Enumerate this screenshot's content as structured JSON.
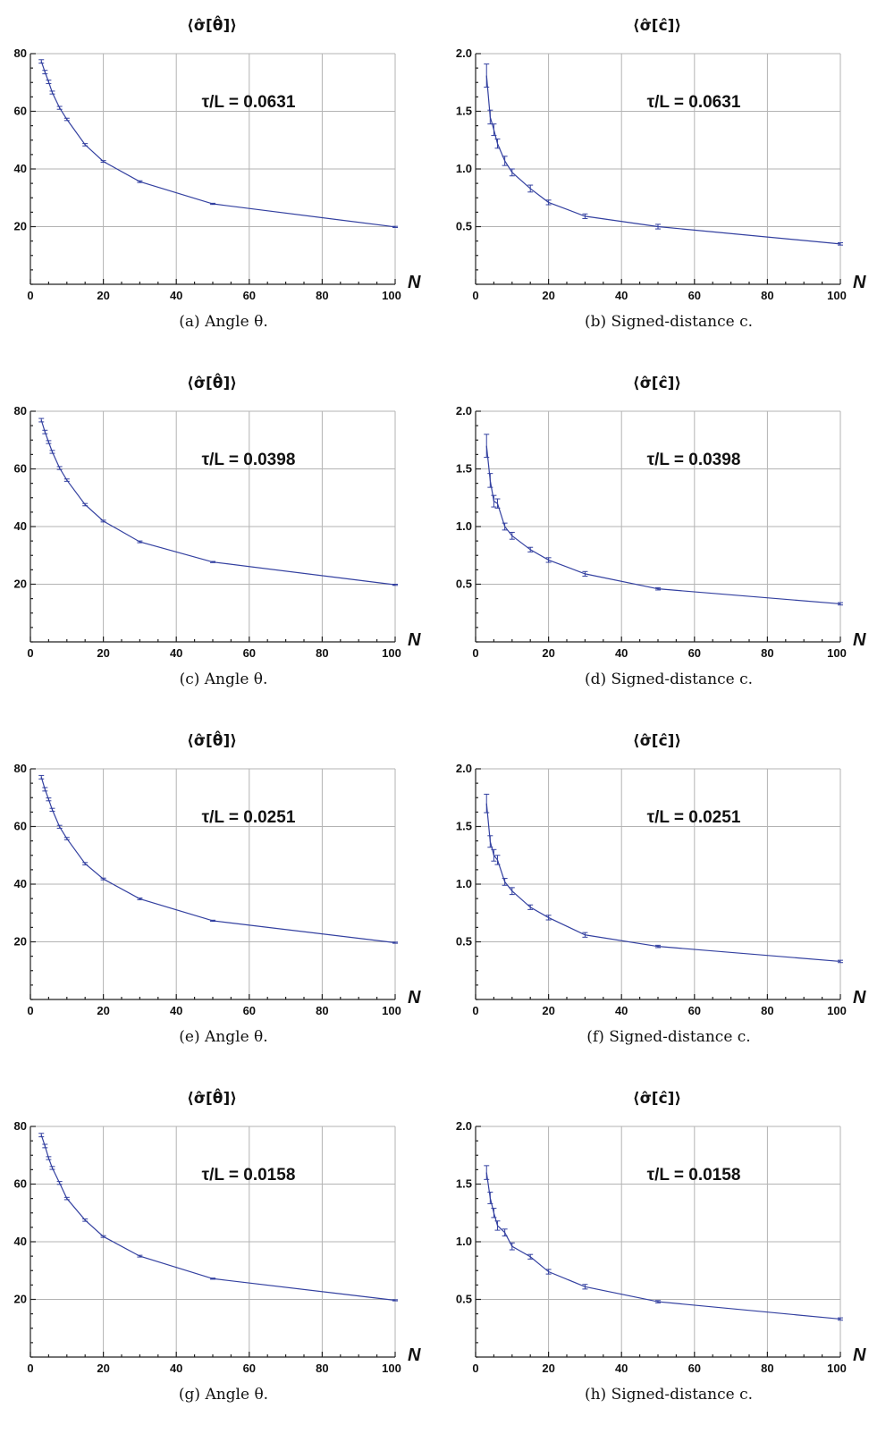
{
  "chart_data": [
    {
      "type": "line",
      "title": "⟨σ̂[θ̂]⟩",
      "annotation": "τ/L = 0.0631",
      "caption": "(a)  Angle θ.",
      "xlabel": "N",
      "xlim": [
        0,
        100
      ],
      "xticks": [
        0,
        20,
        40,
        60,
        80,
        100
      ],
      "ylim": [
        0,
        80
      ],
      "yticks": [
        20,
        40,
        60,
        80
      ],
      "x": [
        3,
        4,
        5,
        6,
        8,
        10,
        15,
        20,
        30,
        50,
        100
      ],
      "values": [
        77.3,
        73.6,
        70.2,
        66.5,
        61.2,
        57.2,
        48.4,
        42.6,
        35.6,
        27.9,
        19.9
      ],
      "errors": [
        0.6,
        0.6,
        0.6,
        0.5,
        0.5,
        0.4,
        0.4,
        0.3,
        0.3,
        0.2,
        0.2
      ],
      "color": "#3340a0"
    },
    {
      "type": "line",
      "title": "⟨σ̂[ĉ]⟩",
      "annotation": "τ/L = 0.0631",
      "caption": "(b) Signed-distance c.",
      "xlabel": "N",
      "xlim": [
        0,
        100
      ],
      "xticks": [
        0,
        20,
        40,
        60,
        80,
        100
      ],
      "ylim": [
        0,
        2
      ],
      "yticks": [
        0.5,
        1.0,
        1.5,
        2.0
      ],
      "x": [
        3,
        4,
        5,
        6,
        8,
        10,
        15,
        20,
        30,
        50,
        100
      ],
      "values": [
        1.81,
        1.45,
        1.34,
        1.22,
        1.07,
        0.97,
        0.83,
        0.71,
        0.59,
        0.5,
        0.35
      ],
      "errors": [
        0.1,
        0.06,
        0.05,
        0.04,
        0.04,
        0.03,
        0.03,
        0.02,
        0.02,
        0.02,
        0.01
      ],
      "color": "#3340a0"
    },
    {
      "type": "line",
      "title": "⟨σ̂[θ̂]⟩",
      "annotation": "τ/L = 0.0398",
      "caption": "(c)  Angle θ.",
      "xlabel": "N",
      "xlim": [
        0,
        100
      ],
      "xticks": [
        0,
        20,
        40,
        60,
        80,
        100
      ],
      "ylim": [
        0,
        80
      ],
      "yticks": [
        20,
        40,
        60,
        80
      ],
      "x": [
        3,
        4,
        5,
        6,
        8,
        10,
        15,
        20,
        30,
        50,
        100
      ],
      "values": [
        76.9,
        72.8,
        69.3,
        65.9,
        60.3,
        56.1,
        47.6,
        41.9,
        34.7,
        27.7,
        19.8
      ],
      "errors": [
        0.6,
        0.6,
        0.5,
        0.5,
        0.5,
        0.4,
        0.4,
        0.3,
        0.3,
        0.2,
        0.2
      ],
      "color": "#3340a0"
    },
    {
      "type": "line",
      "title": "⟨σ̂[ĉ]⟩",
      "annotation": "τ/L = 0.0398",
      "caption": "(d) Signed-distance c.",
      "xlabel": "N",
      "xlim": [
        0,
        100
      ],
      "xticks": [
        0,
        20,
        40,
        60,
        80,
        100
      ],
      "ylim": [
        0,
        2
      ],
      "yticks": [
        0.5,
        1.0,
        1.5,
        2.0
      ],
      "x": [
        3,
        4,
        5,
        6,
        8,
        10,
        15,
        20,
        30,
        50,
        100
      ],
      "values": [
        1.7,
        1.4,
        1.22,
        1.2,
        1.0,
        0.92,
        0.8,
        0.71,
        0.59,
        0.46,
        0.33
      ],
      "errors": [
        0.1,
        0.06,
        0.05,
        0.04,
        0.03,
        0.03,
        0.02,
        0.02,
        0.02,
        0.01,
        0.01
      ],
      "color": "#3340a0"
    },
    {
      "type": "line",
      "title": "⟨σ̂[θ̂]⟩",
      "annotation": "τ/L = 0.0251",
      "caption": "(e)  Angle θ.",
      "xlabel": "N",
      "xlim": [
        0,
        100
      ],
      "xticks": [
        0,
        20,
        40,
        60,
        80,
        100
      ],
      "ylim": [
        0,
        80
      ],
      "yticks": [
        20,
        40,
        60,
        80
      ],
      "x": [
        3,
        4,
        5,
        6,
        8,
        10,
        15,
        20,
        30,
        50,
        100
      ],
      "values": [
        77.1,
        72.9,
        69.4,
        65.8,
        59.9,
        55.8,
        47.1,
        41.8,
        34.9,
        27.3,
        19.7
      ],
      "errors": [
        0.6,
        0.6,
        0.5,
        0.5,
        0.5,
        0.4,
        0.4,
        0.3,
        0.3,
        0.2,
        0.2
      ],
      "color": "#3340a0"
    },
    {
      "type": "line",
      "title": "⟨σ̂[ĉ]⟩",
      "annotation": "τ/L = 0.0251",
      "caption": "(f) Signed-distance c.",
      "xlabel": "N",
      "xlim": [
        0,
        100
      ],
      "xticks": [
        0,
        20,
        40,
        60,
        80,
        100
      ],
      "ylim": [
        0,
        2
      ],
      "yticks": [
        0.5,
        1.0,
        1.5,
        2.0
      ],
      "x": [
        3,
        4,
        5,
        6,
        8,
        10,
        15,
        20,
        30,
        50,
        100
      ],
      "values": [
        1.7,
        1.37,
        1.25,
        1.21,
        1.02,
        0.94,
        0.8,
        0.71,
        0.56,
        0.46,
        0.33
      ],
      "errors": [
        0.08,
        0.05,
        0.05,
        0.04,
        0.03,
        0.03,
        0.02,
        0.02,
        0.02,
        0.01,
        0.01
      ],
      "color": "#3340a0"
    },
    {
      "type": "line",
      "title": "⟨σ̂[θ̂]⟩",
      "annotation": "τ/L = 0.0158",
      "caption": "(g)  Angle θ.",
      "xlabel": "N",
      "xlim": [
        0,
        100
      ],
      "xticks": [
        0,
        20,
        40,
        60,
        80,
        100
      ],
      "ylim": [
        0,
        80
      ],
      "yticks": [
        20,
        40,
        60,
        80
      ],
      "x": [
        3,
        4,
        5,
        6,
        8,
        10,
        15,
        20,
        30,
        50,
        100
      ],
      "values": [
        77.0,
        73.2,
        69.0,
        65.6,
        60.4,
        55.0,
        47.5,
        41.8,
        35.0,
        27.2,
        19.7
      ],
      "errors": [
        0.6,
        0.6,
        0.5,
        0.5,
        0.5,
        0.4,
        0.4,
        0.3,
        0.3,
        0.2,
        0.2
      ],
      "color": "#3340a0"
    },
    {
      "type": "line",
      "title": "⟨σ̂[ĉ]⟩",
      "annotation": "τ/L = 0.0158",
      "caption": "(h) Signed-distance c.",
      "xlabel": "N",
      "xlim": [
        0,
        100
      ],
      "xticks": [
        0,
        20,
        40,
        60,
        80,
        100
      ],
      "ylim": [
        0,
        2
      ],
      "yticks": [
        0.5,
        1.0,
        1.5,
        2.0
      ],
      "x": [
        3,
        4,
        5,
        6,
        8,
        10,
        15,
        20,
        30,
        50,
        100
      ],
      "values": [
        1.6,
        1.38,
        1.25,
        1.14,
        1.08,
        0.96,
        0.87,
        0.74,
        0.61,
        0.48,
        0.33
      ],
      "errors": [
        0.06,
        0.05,
        0.04,
        0.04,
        0.03,
        0.03,
        0.02,
        0.02,
        0.02,
        0.01,
        0.01
      ],
      "color": "#3340a0"
    }
  ]
}
